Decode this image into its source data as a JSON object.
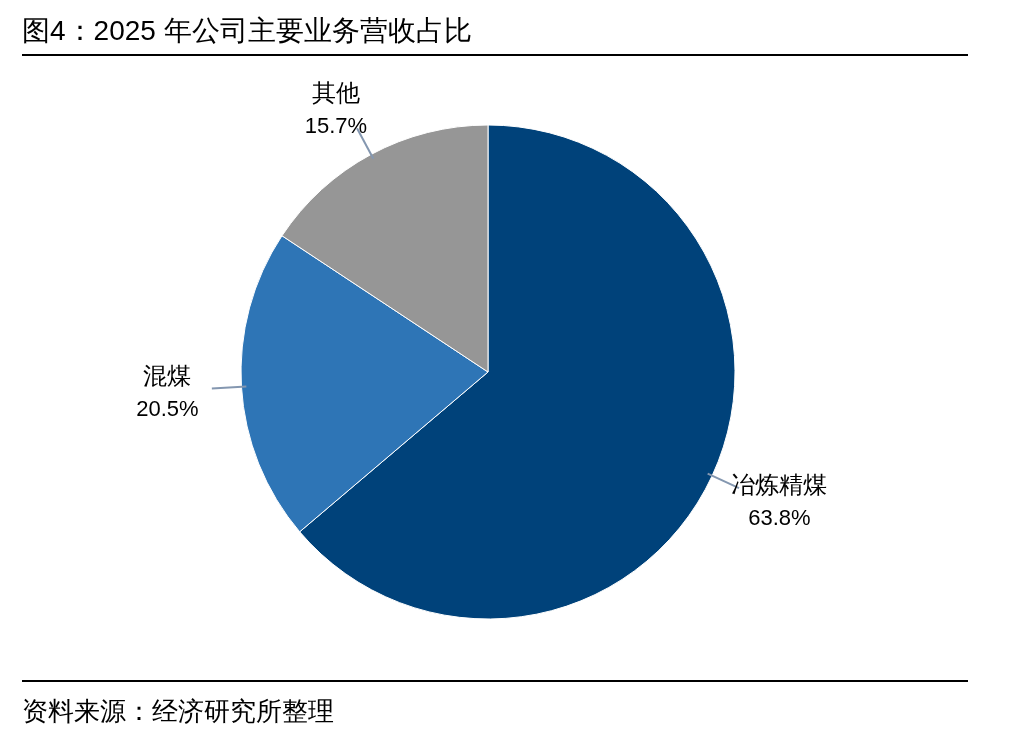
{
  "chart_data": {
    "type": "pie",
    "title": "图4：2025 年公司主要业务营收占比",
    "categories": [
      "冶炼精煤",
      "混煤",
      "其他"
    ],
    "values": [
      63.8,
      20.5,
      15.7
    ],
    "value_labels": [
      "63.8%",
      "20.5%",
      "15.7%"
    ],
    "colors": [
      "#00427a",
      "#2e75b6",
      "#969696"
    ],
    "annotations": [
      "资料来源：经济研究所整理"
    ],
    "legend": false
  }
}
